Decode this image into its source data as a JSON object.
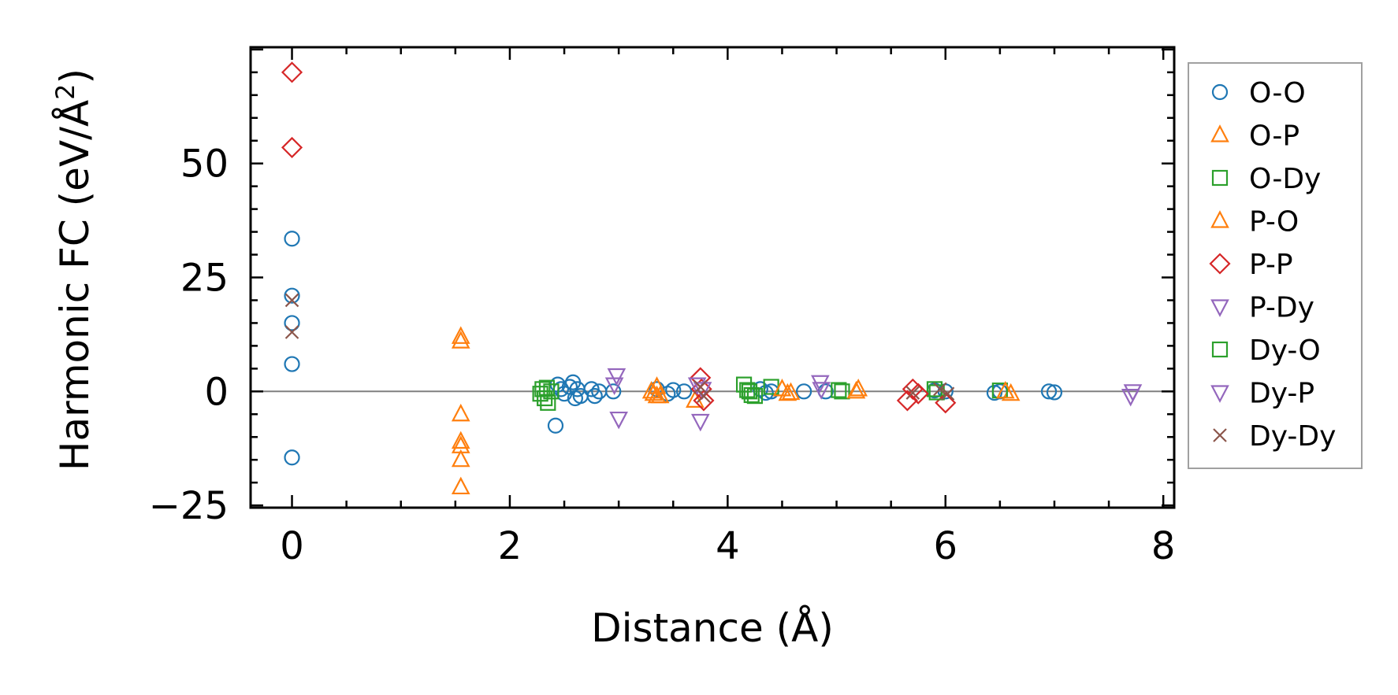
{
  "chart_data": {
    "type": "scatter",
    "title": "",
    "xlabel": "Distance (Å)",
    "ylabel_base": "Harmonic FC (eV/Å",
    "ylabel_sup": "2",
    "ylabel_end": ")",
    "xlim": [
      -0.38,
      8.1
    ],
    "ylim": [
      -25.5,
      75.5
    ],
    "xticks": [
      0,
      2,
      4,
      6,
      8
    ],
    "xtick_labels": [
      "0",
      "2",
      "4",
      "6",
      "8"
    ],
    "yticks": [
      -25,
      0,
      25,
      50
    ],
    "ytick_labels": [
      "−25",
      "0",
      "25",
      "50"
    ],
    "zero_line": 0,
    "legend_position": "right-outside",
    "series": [
      {
        "name": "O-O",
        "marker": "circle",
        "color": "#1f77b4",
        "x": [
          0,
          0,
          0,
          0,
          0,
          2.42,
          2.44,
          2.47,
          2.5,
          2.55,
          2.58,
          2.6,
          2.62,
          2.65,
          2.75,
          2.78,
          2.82,
          2.95,
          3.35,
          3.45,
          3.5,
          3.6,
          4.3,
          4.35,
          4.4,
          4.7,
          4.9,
          5.9,
          6.0,
          6.45,
          6.5,
          6.95,
          7.0
        ],
        "y": [
          33.5,
          21,
          15,
          6,
          -14.5,
          -7.5,
          1.5,
          0.5,
          -0.5,
          1,
          2,
          -1.5,
          0.5,
          -1,
          0.5,
          -1,
          0,
          0,
          0.5,
          -0.5,
          0.3,
          0,
          0.5,
          -0.3,
          0,
          0,
          0,
          0.2,
          0,
          -0.3,
          0,
          0,
          -0.2
        ]
      },
      {
        "name": "O-P",
        "marker": "triangle-up",
        "color": "#ff7f0e",
        "x": [
          1.55,
          1.55,
          1.55,
          1.55,
          1.55,
          1.55,
          1.55,
          3.35,
          3.38,
          3.7,
          4.55,
          5.2,
          6.6
        ],
        "y": [
          12,
          11,
          -5,
          -11,
          -12,
          -15,
          -21,
          1,
          -1,
          -2,
          -0.5,
          0.5,
          -0.5
        ]
      },
      {
        "name": "O-Dy",
        "marker": "square",
        "color": "#2ca02c",
        "x": [
          2.3,
          2.32,
          2.35,
          2.38,
          4.15,
          4.2,
          4.25,
          4.4,
          5.05,
          5.9,
          6.5
        ],
        "y": [
          0.5,
          -1.5,
          -2.5,
          0,
          1.5,
          0,
          -1,
          1,
          0,
          0.5,
          0.2
        ]
      },
      {
        "name": "P-O",
        "marker": "triangle-up",
        "color": "#ff7f0e",
        "x": [
          3.3,
          3.32,
          3.35,
          4.5,
          4.58,
          5.18,
          6.55
        ],
        "y": [
          0,
          -0.5,
          -1,
          0.5,
          -0.3,
          0,
          0
        ]
      },
      {
        "name": "P-P",
        "marker": "diamond",
        "color": "#d62728",
        "x": [
          0,
          0,
          3.75,
          3.78,
          3.76,
          5.65,
          5.7,
          5.75,
          6.0
        ],
        "y": [
          70,
          53.5,
          3,
          -2,
          0.5,
          -2,
          0.5,
          -0.5,
          -2.5
        ]
      },
      {
        "name": "P-Dy",
        "marker": "triangle-down",
        "color": "#9467bd",
        "x": [
          2.98,
          3.0,
          3.75,
          3.77,
          4.85,
          7.7
        ],
        "y": [
          3.5,
          -6,
          -6.5,
          0.5,
          2,
          -1
        ]
      },
      {
        "name": "Dy-O",
        "marker": "square",
        "color": "#2ca02c",
        "x": [
          2.28,
          2.34,
          4.18,
          4.22,
          5.02,
          5.92
        ],
        "y": [
          -0.5,
          0.8,
          0.3,
          -0.8,
          0.3,
          -0.2
        ]
      },
      {
        "name": "Dy-P",
        "marker": "triangle-down",
        "color": "#9467bd",
        "x": [
          2.96,
          3.72,
          4.86,
          7.72
        ],
        "y": [
          1.5,
          1.5,
          0.5,
          0
        ]
      },
      {
        "name": "Dy-Dy",
        "marker": "x",
        "color": "#8c564b",
        "x": [
          0,
          0,
          3.75,
          3.78,
          5.7,
          5.95,
          6.02
        ],
        "y": [
          20,
          13,
          1,
          -1,
          -0.3,
          0.5,
          -0.5
        ]
      }
    ]
  }
}
